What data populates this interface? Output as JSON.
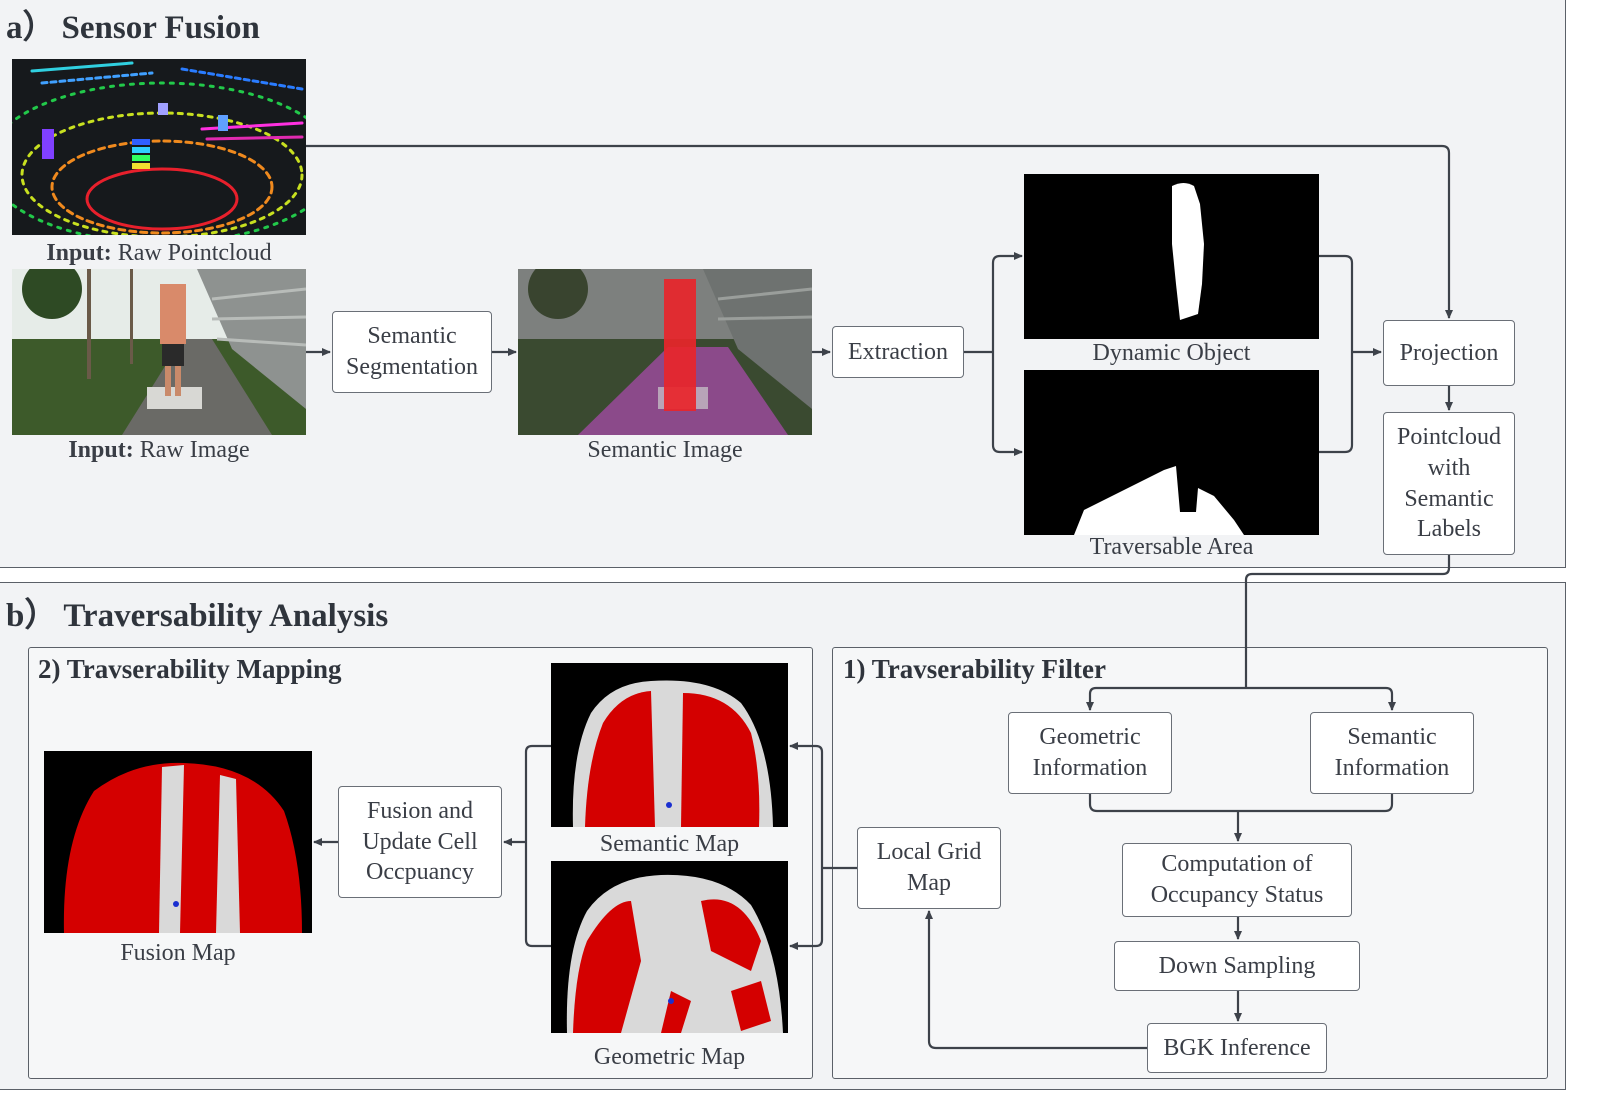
{
  "sections": {
    "a": {
      "marker": "a）",
      "title": "Sensor Fusion"
    },
    "b": {
      "marker": "b）",
      "title": "Traversability Analysis"
    }
  },
  "subsections": {
    "mapping": {
      "title": "2) Travserability Mapping"
    },
    "filter": {
      "title": "1) Travserability Filter"
    }
  },
  "captions": {
    "raw_pointcloud": {
      "bold": "Input:",
      "text": " Raw Pointcloud"
    },
    "raw_image": {
      "bold": "Input:",
      "text": " Raw Image"
    },
    "semantic_image": "Semantic Image",
    "dynamic_object": "Dynamic Object",
    "traversable_area": "Traversable Area",
    "semantic_map": "Semantic Map",
    "geometric_map": "Geometric Map",
    "fusion_map": "Fusion Map"
  },
  "boxes": {
    "semantic_segmentation": "Semantic\nSegmentation",
    "extraction": "Extraction",
    "projection": "Projection",
    "pointcloud_semantic_labels": "Pointcloud\nwith\nSemantic\nLabels",
    "geometric_information": "Geometric\nInformation",
    "semantic_information": "Semantic\nInformation",
    "computation_occupancy": "Computation of\nOccupancy Status",
    "down_sampling": "Down Sampling",
    "bgk_inference": "BGK Inference",
    "local_grid_map": "Local Grid\nMap",
    "fusion_update": "Fusion and\nUpdate Cell\nOccpuancy"
  },
  "colors": {
    "panel_bg": "#f2f3f5",
    "connector": "#3d424a",
    "map_red": "#d40000",
    "map_gray": "#d9d9d9",
    "mask_white": "#ffffff",
    "mask_black": "#000000",
    "semantic_overlay_red": "#e8252a",
    "semantic_overlay_purple": "#a040a0"
  },
  "icons": [
    "pointcloud-image",
    "camera-image",
    "semantic-overlay-image",
    "binary-mask-image",
    "occupancy-map-image"
  ]
}
